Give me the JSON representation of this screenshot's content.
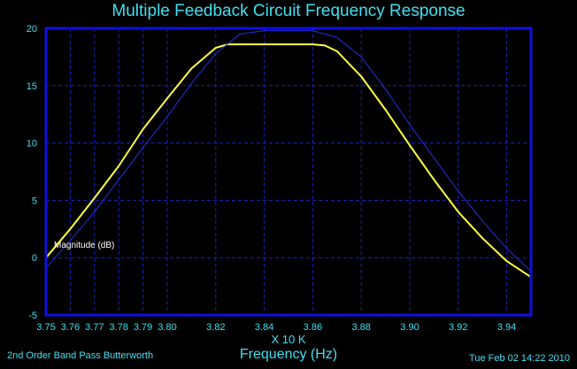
{
  "chart_data": {
    "type": "line",
    "title": "Multiple Feedback Circuit Frequency Response",
    "xlabel": "Frequency (Hz)",
    "x_multiplier": "X 10 K",
    "xlim": [
      3.75,
      3.95
    ],
    "ylim": [
      -5,
      20
    ],
    "x_ticks": [
      "3.75",
      "3.76",
      "3.77",
      "3.78",
      "3.79",
      "3.80",
      "3.82",
      "3.84",
      "3.86",
      "3.88",
      "3.90",
      "3.92",
      "3.94"
    ],
    "x_tick_values": [
      3.75,
      3.76,
      3.77,
      3.78,
      3.79,
      3.8,
      3.82,
      3.84,
      3.86,
      3.88,
      3.9,
      3.92,
      3.94
    ],
    "y_ticks": [
      "-5",
      "0",
      "5",
      "10",
      "15",
      "20"
    ],
    "y_tick_values": [
      -5,
      0,
      5,
      10,
      15,
      20
    ],
    "grid": true,
    "annotation": "Magnitude (dB)",
    "series": [
      {
        "color": "#ffff40",
        "x": [
          3.75,
          3.76,
          3.77,
          3.78,
          3.79,
          3.8,
          3.81,
          3.82,
          3.825,
          3.83,
          3.84,
          3.85,
          3.86,
          3.865,
          3.87,
          3.88,
          3.89,
          3.9,
          3.91,
          3.92,
          3.93,
          3.94,
          3.95
        ],
        "y": [
          0.0,
          2.5,
          5.2,
          8.0,
          11.2,
          13.9,
          16.5,
          18.3,
          18.6,
          18.6,
          18.6,
          18.6,
          18.6,
          18.5,
          18.0,
          15.8,
          12.9,
          9.8,
          6.8,
          4.0,
          1.7,
          -0.3,
          -1.7
        ]
      },
      {
        "color": "#2030e0",
        "x": [
          3.75,
          3.76,
          3.77,
          3.78,
          3.79,
          3.8,
          3.81,
          3.82,
          3.83,
          3.84,
          3.85,
          3.86,
          3.87,
          3.88,
          3.89,
          3.9,
          3.91,
          3.92,
          3.93,
          3.94,
          3.95
        ],
        "y": [
          -0.9,
          1.5,
          4.0,
          6.8,
          9.6,
          12.3,
          15.2,
          17.8,
          19.5,
          19.8,
          19.8,
          19.8,
          19.2,
          17.5,
          14.7,
          11.6,
          8.7,
          5.8,
          3.2,
          0.8,
          -1.2
        ]
      }
    ]
  },
  "footer": {
    "left": "2nd Order Band Pass Butterworth",
    "right": "Tue Feb 02 14:22 2010"
  },
  "colors": {
    "frame": "#1010e0",
    "grid": "#2020c0",
    "text": "#40e0f0"
  }
}
